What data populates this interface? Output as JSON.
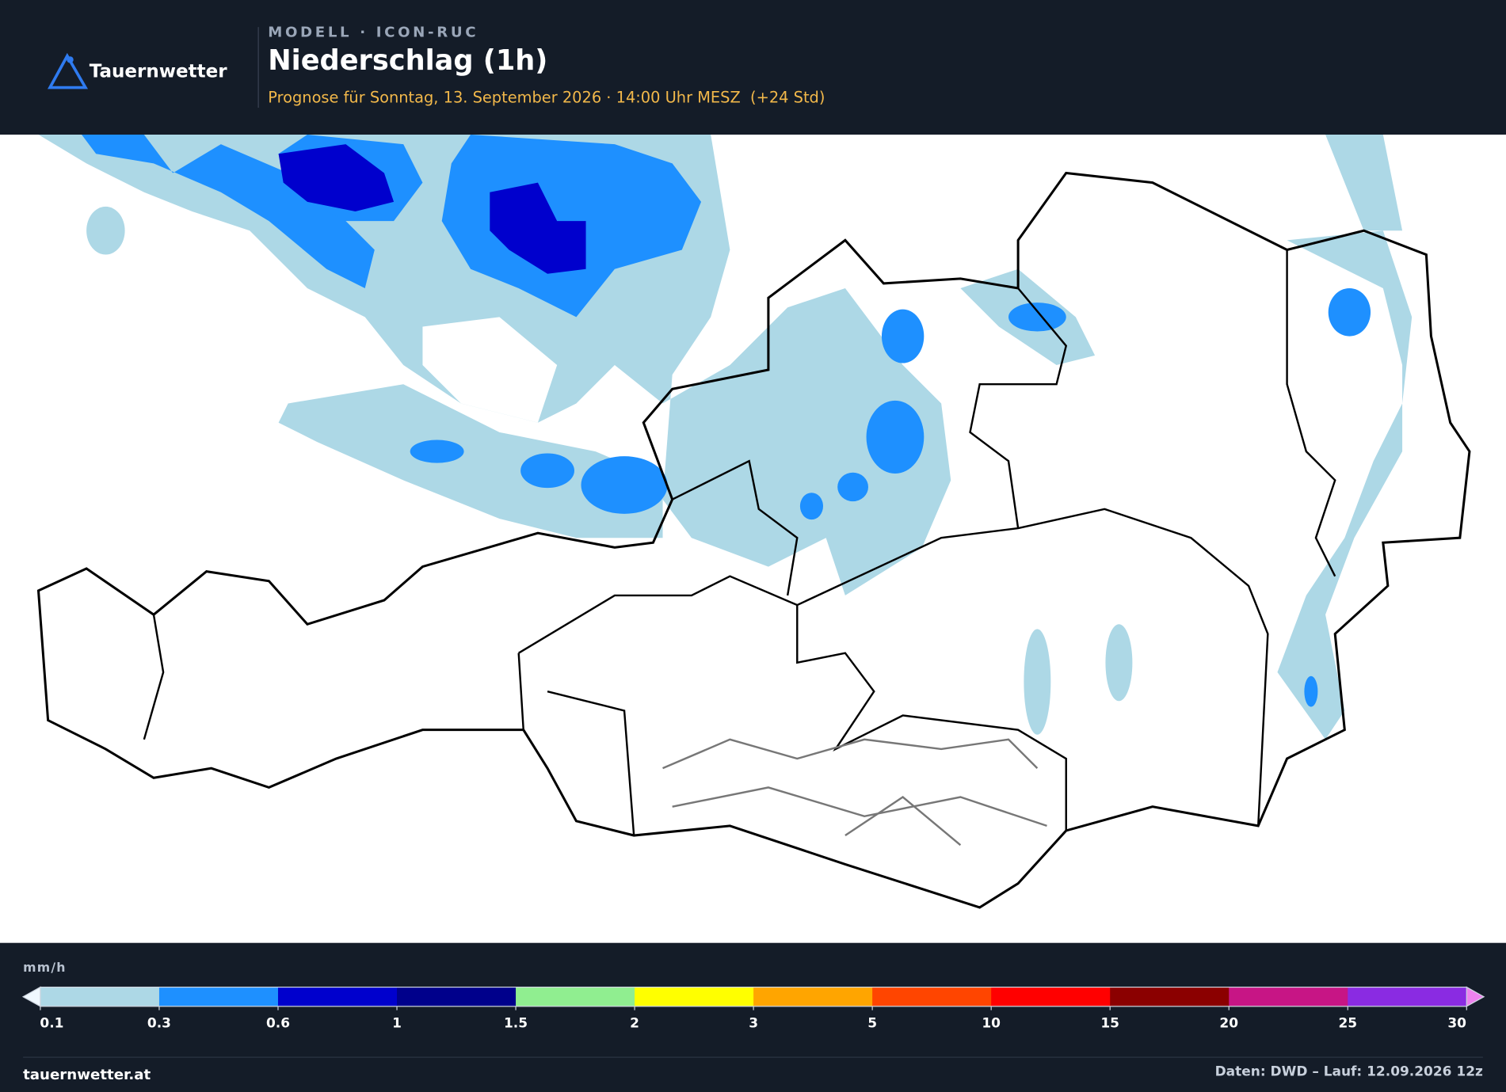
{
  "header": {
    "logo": "Tauernwetter",
    "kicker": "MODELL · ICON-RUC",
    "title": "Niederschlag (1h)",
    "subtitle": "Prognose für Sonntag, 13. September 2026 · 14:00 Uhr MESZ  (+24 Std)"
  },
  "legend": {
    "unit": "mm/h",
    "levels": [
      0.1,
      0.3,
      0.6,
      1,
      1.5,
      2,
      3,
      5,
      10,
      15,
      20,
      25,
      30
    ],
    "colors": [
      "#add8e6",
      "#1e90ff",
      "#0000cd",
      "#00008b",
      "#90ee90",
      "#ffff00",
      "#ffa500",
      "#ff4500",
      "#ff0000",
      "#8b0000",
      "#c71585",
      "#8a2be2"
    ],
    "extend_colors": [
      "#f0f8ff",
      "#ee82ee"
    ]
  },
  "footer": {
    "site": "tauernwetter.at",
    "source": "Daten: DWD – Lauf: 12.09.2026 12z"
  }
}
